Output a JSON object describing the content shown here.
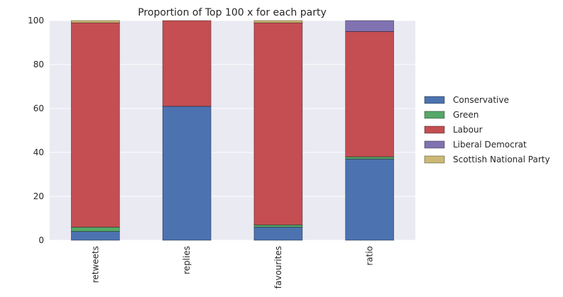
{
  "chart_data": {
    "type": "bar",
    "stacked": true,
    "title": "Proportion of Top 100 x for each party",
    "xlabel": "",
    "ylabel": "",
    "ylim": [
      0,
      100
    ],
    "yticks": [
      0,
      20,
      40,
      60,
      80,
      100
    ],
    "grid": true,
    "legend_position": "right",
    "categories": [
      "retweets",
      "replies",
      "favourites",
      "ratio"
    ],
    "series": [
      {
        "name": "Conservative",
        "color": "#4c72b0",
        "values": [
          4,
          61,
          6,
          37
        ]
      },
      {
        "name": "Green",
        "color": "#55a868",
        "values": [
          2,
          0,
          1,
          1
        ]
      },
      {
        "name": "Labour",
        "color": "#c44e52",
        "values": [
          93,
          39,
          92,
          57
        ]
      },
      {
        "name": "Liberal Democrat",
        "color": "#8172b2",
        "values": [
          0,
          0,
          0,
          5
        ]
      },
      {
        "name": "Scottish National Party",
        "color": "#ccb974",
        "values": [
          1,
          0,
          1,
          0
        ]
      }
    ]
  },
  "colors": {
    "plot_background": "#eaeaf2",
    "grid": "#ffffff"
  }
}
